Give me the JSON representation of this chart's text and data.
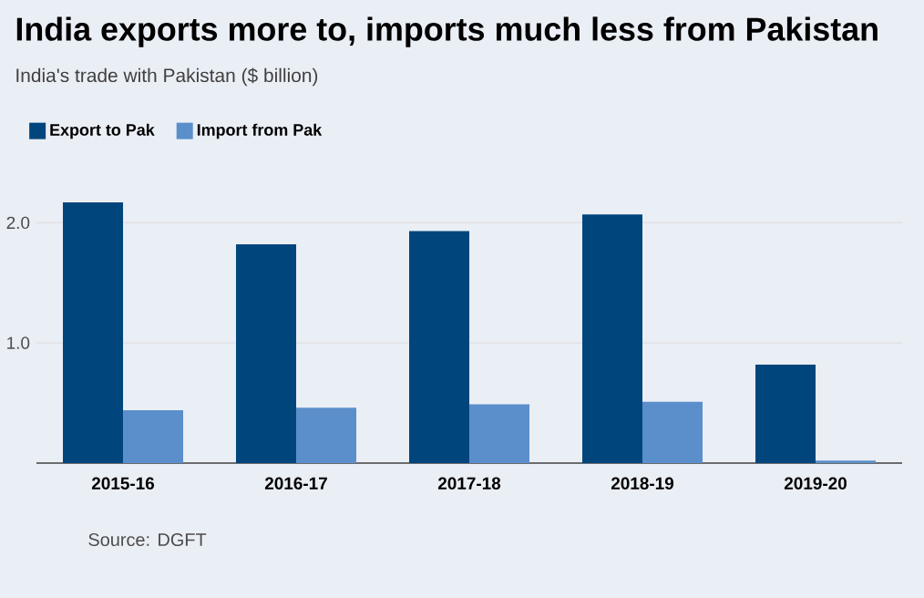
{
  "chart_data": {
    "type": "bar",
    "title": "India exports more to, imports much less from Pakistan",
    "subtitle": "India's trade with Pakistan ($ billion)",
    "categories": [
      "2015-16",
      "2016-17",
      "2017-18",
      "2018-19",
      "2019-20"
    ],
    "series": [
      {
        "name": "Export to Pak",
        "color": "#00457c",
        "values": [
          2.17,
          1.82,
          1.93,
          2.07,
          0.82
        ]
      },
      {
        "name": "Import from Pak",
        "color": "#5b8fcb",
        "values": [
          0.44,
          0.46,
          0.49,
          0.51,
          0.02
        ]
      }
    ],
    "ylim": [
      0,
      2.2
    ],
    "yticks": [
      {
        "value": 1,
        "label": "1.0"
      },
      {
        "value": 2,
        "label": "2.0"
      }
    ],
    "grid": "y",
    "legend": "top left",
    "annotations": [
      "Source: DGFT"
    ]
  }
}
